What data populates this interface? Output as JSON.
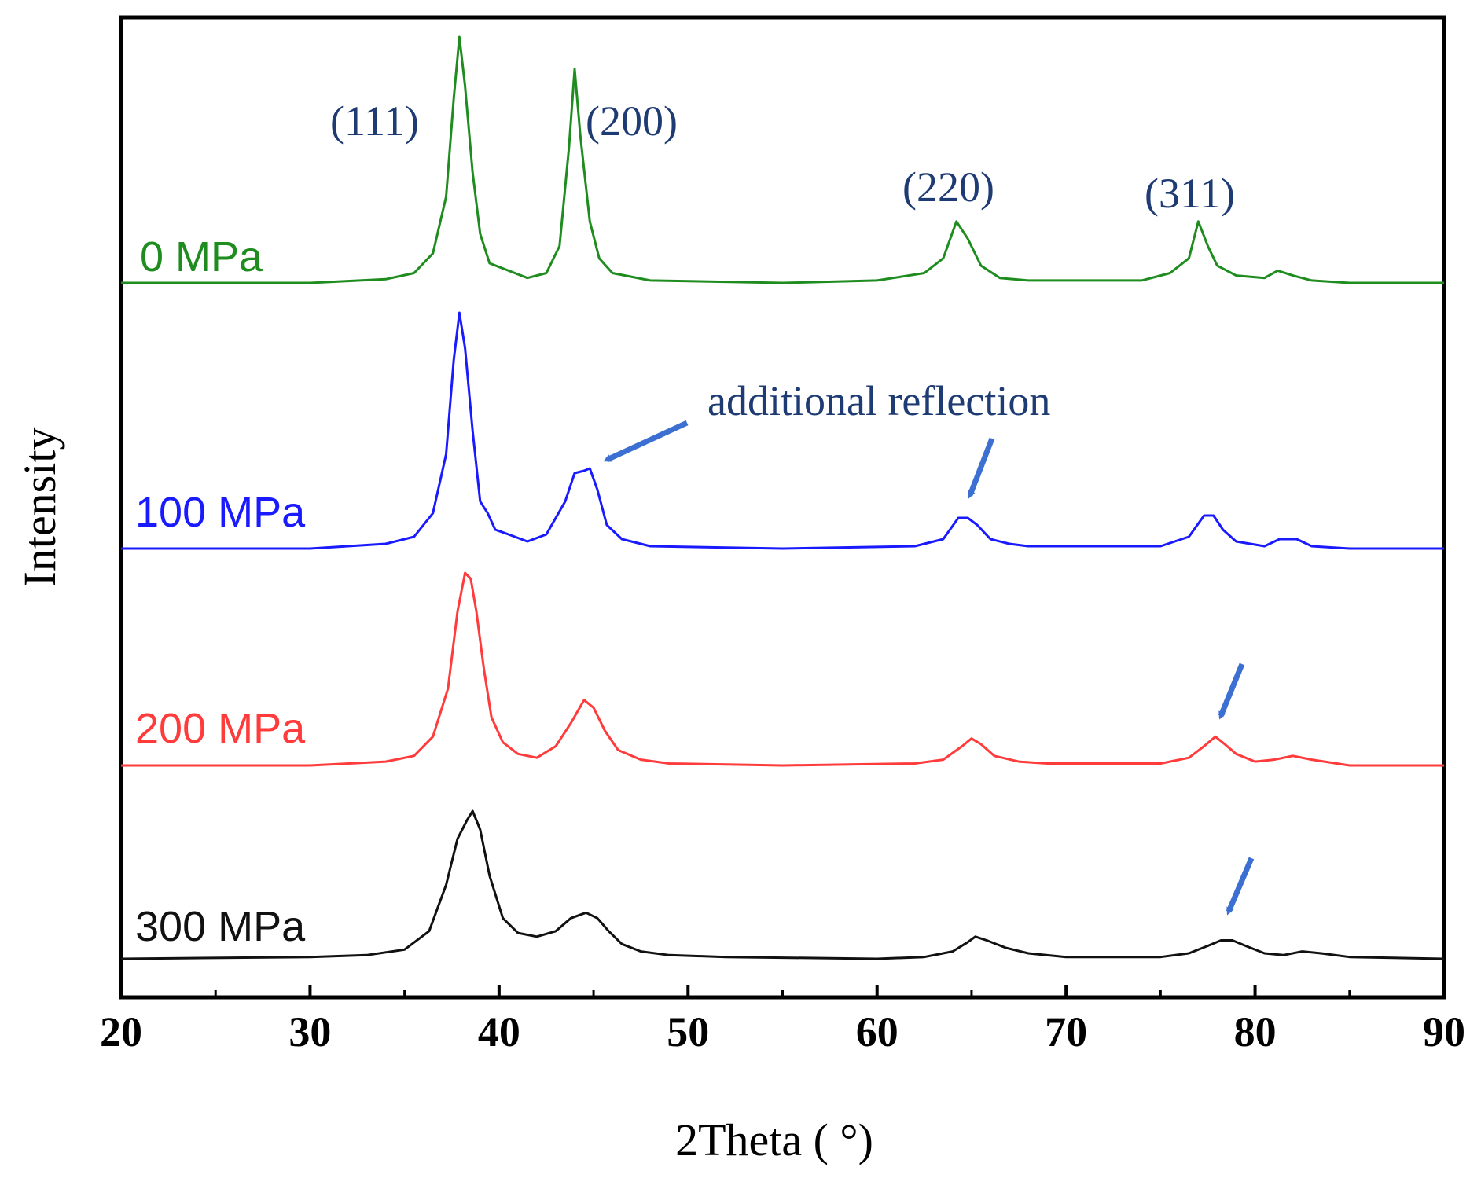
{
  "chart_data": {
    "type": "line",
    "title": "",
    "xlabel": "2Theta (  °)",
    "ylabel": "Intensity",
    "xlim": [
      20,
      90
    ],
    "xticks": [
      20,
      30,
      40,
      50,
      60,
      70,
      80,
      90
    ],
    "xtick_labels": [
      "20",
      "30",
      "40",
      "50",
      "60",
      "70",
      "80",
      "90"
    ],
    "y_ticks_shown": false,
    "grid": false,
    "series": [
      {
        "name": "0 MPa",
        "color": "#1e8c1e",
        "x": [
          20,
          30,
          34,
          35.5,
          36.5,
          37.2,
          37.6,
          37.9,
          38.2,
          38.6,
          39.0,
          39.5,
          40.5,
          41.5,
          42.5,
          43.2,
          43.7,
          44.0,
          44.3,
          44.8,
          45.3,
          46.0,
          48,
          55,
          60,
          62.5,
          63.5,
          64.2,
          64.8,
          65.5,
          66.5,
          68,
          74,
          75.5,
          76.5,
          77.0,
          77.5,
          78.0,
          79.0,
          80.5,
          81.2,
          82.0,
          83.0,
          85,
          90
        ],
        "y": [
          0.0,
          0.0,
          0.015,
          0.04,
          0.12,
          0.35,
          0.75,
          1.0,
          0.8,
          0.45,
          0.2,
          0.08,
          0.05,
          0.02,
          0.04,
          0.15,
          0.55,
          0.87,
          0.6,
          0.25,
          0.1,
          0.04,
          0.01,
          0.0,
          0.01,
          0.04,
          0.1,
          0.25,
          0.18,
          0.07,
          0.02,
          0.01,
          0.01,
          0.04,
          0.1,
          0.25,
          0.15,
          0.07,
          0.03,
          0.02,
          0.05,
          0.03,
          0.01,
          0.0,
          0.0
        ]
      },
      {
        "name": "100 MPa",
        "color": "#1a1aff",
        "x": [
          20,
          30,
          34,
          35.5,
          36.5,
          37.2,
          37.6,
          37.9,
          38.2,
          38.6,
          39.0,
          39.4,
          39.8,
          40.5,
          41.5,
          42.5,
          43.5,
          44.0,
          44.5,
          44.8,
          45.2,
          45.7,
          46.5,
          48,
          55,
          62,
          63.5,
          64.3,
          64.8,
          65.3,
          66.0,
          67,
          68,
          75,
          76.5,
          77.3,
          77.8,
          78.3,
          79.0,
          80.5,
          81.3,
          82.2,
          83.0,
          85,
          90
        ],
        "y": [
          0.0,
          0.0,
          0.02,
          0.05,
          0.15,
          0.4,
          0.8,
          1.0,
          0.85,
          0.5,
          0.2,
          0.15,
          0.08,
          0.06,
          0.03,
          0.06,
          0.2,
          0.32,
          0.33,
          0.34,
          0.25,
          0.1,
          0.04,
          0.01,
          0.0,
          0.01,
          0.04,
          0.13,
          0.13,
          0.1,
          0.04,
          0.02,
          0.01,
          0.01,
          0.05,
          0.14,
          0.14,
          0.08,
          0.03,
          0.01,
          0.04,
          0.04,
          0.01,
          0.0,
          0.0
        ]
      },
      {
        "name": "200 MPa",
        "color": "#ff3b3b",
        "x": [
          20,
          30,
          34,
          35.5,
          36.5,
          37.3,
          37.8,
          38.2,
          38.5,
          38.8,
          39.2,
          39.6,
          40.2,
          41.0,
          42.0,
          43.0,
          43.8,
          44.5,
          45.0,
          45.6,
          46.3,
          47.5,
          49,
          55,
          62,
          63.5,
          64.5,
          65.0,
          65.5,
          66.2,
          67.5,
          69,
          75,
          76.5,
          77.3,
          77.9,
          78.4,
          79.0,
          80.0,
          81.0,
          82.0,
          83.0,
          85,
          90
        ],
        "y": [
          0.0,
          0.0,
          0.02,
          0.05,
          0.15,
          0.4,
          0.8,
          1.0,
          0.97,
          0.8,
          0.5,
          0.25,
          0.12,
          0.06,
          0.04,
          0.1,
          0.22,
          0.34,
          0.3,
          0.18,
          0.08,
          0.03,
          0.01,
          0.0,
          0.01,
          0.03,
          0.1,
          0.14,
          0.11,
          0.05,
          0.02,
          0.01,
          0.01,
          0.04,
          0.1,
          0.15,
          0.11,
          0.06,
          0.02,
          0.03,
          0.05,
          0.03,
          0.0,
          0.0
        ]
      },
      {
        "name": "300 MPa",
        "color": "#111111",
        "x": [
          20,
          30,
          33,
          35,
          36.3,
          37.2,
          37.8,
          38.3,
          38.6,
          39.0,
          39.5,
          40.2,
          41.0,
          42.0,
          43.0,
          43.8,
          44.6,
          45.2,
          45.8,
          46.5,
          47.5,
          49,
          52,
          60,
          62.5,
          64.0,
          64.8,
          65.2,
          65.8,
          66.8,
          68,
          70,
          75,
          76.5,
          77.5,
          78.2,
          78.8,
          79.5,
          80.5,
          81.5,
          82.5,
          83.5,
          85,
          90
        ],
        "y": [
          0.0,
          0.01,
          0.02,
          0.05,
          0.15,
          0.4,
          0.65,
          0.75,
          0.8,
          0.7,
          0.45,
          0.22,
          0.14,
          0.12,
          0.15,
          0.22,
          0.25,
          0.22,
          0.15,
          0.08,
          0.04,
          0.02,
          0.01,
          0.0,
          0.01,
          0.04,
          0.09,
          0.12,
          0.1,
          0.06,
          0.03,
          0.01,
          0.01,
          0.03,
          0.07,
          0.1,
          0.1,
          0.07,
          0.03,
          0.02,
          0.04,
          0.03,
          0.01,
          0.0
        ]
      }
    ],
    "annotations": [
      {
        "text": "(111)",
        "type": "peak-label"
      },
      {
        "text": "(200)",
        "type": "peak-label"
      },
      {
        "text": "(220)",
        "type": "peak-label"
      },
      {
        "text": "(311)",
        "type": "peak-label"
      },
      {
        "text": "additional reflection",
        "type": "callout"
      }
    ],
    "arrow_color": "#3b6fd1",
    "peak_label_color": "#1f3b73"
  }
}
